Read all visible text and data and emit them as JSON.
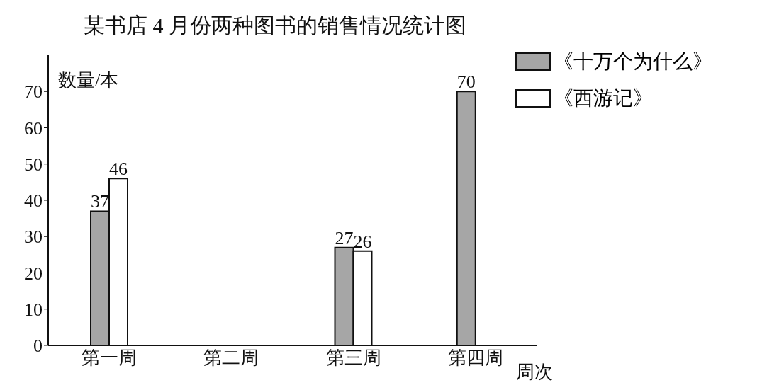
{
  "chart_data": {
    "type": "bar",
    "title": "某书店 4 月份两种图书的销售情况统计图",
    "xlabel": "周次",
    "ylabel": "数量/本",
    "categories": [
      "第一周",
      "第二周",
      "第三周",
      "第四周"
    ],
    "series": [
      {
        "name": "《十万个为什么》",
        "color": "#a6a6a6",
        "values": [
          37,
          null,
          27,
          70
        ]
      },
      {
        "name": "《西游记》",
        "color": "#ffffff",
        "values": [
          46,
          null,
          26,
          null
        ]
      }
    ],
    "ylim": [
      0,
      80
    ],
    "yticks": [
      0,
      10,
      20,
      30,
      40,
      50,
      60,
      70
    ],
    "grid": false,
    "legend": "top right",
    "data_labels": true
  }
}
